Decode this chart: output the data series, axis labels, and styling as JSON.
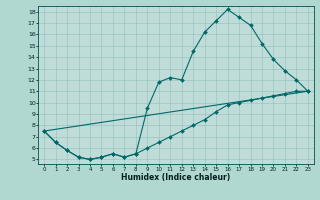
{
  "xlabel": "Humidex (Indice chaleur)",
  "bg_color": "#b0d8d0",
  "plot_bg_color": "#c0dcd8",
  "line_color": "#006868",
  "grid_color": "#90c0bc",
  "xmin": -0.5,
  "xmax": 23.5,
  "ymin": 4.6,
  "ymax": 18.5,
  "line1_x": [
    0,
    1,
    2,
    3,
    4,
    5,
    6,
    7,
    8,
    9,
    10,
    11,
    12,
    13,
    14,
    15,
    16,
    17,
    18,
    19,
    20,
    21,
    22,
    23
  ],
  "line1_y": [
    7.5,
    6.5,
    5.8,
    5.2,
    5.0,
    5.2,
    5.5,
    5.2,
    5.5,
    9.5,
    11.8,
    12.2,
    12.0,
    14.5,
    16.2,
    17.2,
    18.2,
    17.5,
    16.8,
    15.2,
    13.8,
    12.8,
    12.0,
    11.0
  ],
  "line2_x": [
    0,
    1,
    2,
    3,
    4,
    5,
    6,
    7,
    8,
    9,
    10,
    11,
    12,
    13,
    14,
    15,
    16,
    17,
    18,
    19,
    20,
    21,
    22,
    23
  ],
  "line2_y": [
    7.5,
    6.5,
    5.8,
    5.2,
    5.0,
    5.2,
    5.5,
    5.2,
    5.5,
    6.0,
    6.5,
    7.0,
    7.5,
    8.0,
    8.5,
    9.2,
    9.8,
    10.0,
    10.2,
    10.4,
    10.6,
    10.8,
    11.0,
    11.0
  ],
  "line3_x": [
    0,
    23
  ],
  "line3_y": [
    7.5,
    11.0
  ],
  "xticks": [
    0,
    1,
    2,
    3,
    4,
    5,
    6,
    7,
    8,
    9,
    10,
    11,
    12,
    13,
    14,
    15,
    16,
    17,
    18,
    19,
    20,
    21,
    22,
    23
  ],
  "yticks": [
    5,
    6,
    7,
    8,
    9,
    10,
    11,
    12,
    13,
    14,
    15,
    16,
    17,
    18
  ]
}
